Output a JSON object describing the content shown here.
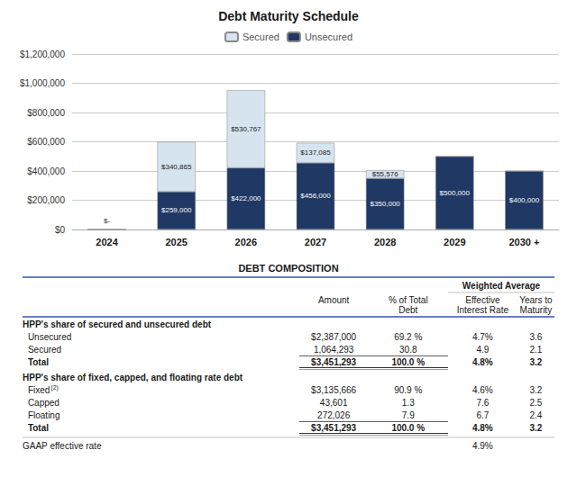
{
  "chart_data": {
    "type": "bar",
    "title": "Debt Maturity Schedule",
    "categories": [
      "2024",
      "2025",
      "2026",
      "2027",
      "2028",
      "2029",
      "2030 +"
    ],
    "series": [
      {
        "name": "Unsecured",
        "color": "#1f3864",
        "values": [
          0,
          259000,
          422000,
          456000,
          350000,
          500000,
          400000
        ],
        "value_labels": [
          "$-",
          "$259,000",
          "$422,000",
          "$456,000",
          "$350,000",
          "$500,000",
          "$400,000"
        ]
      },
      {
        "name": "Secured",
        "color": "#d6e4f0",
        "values": [
          0,
          340865,
          530767,
          137085,
          55576,
          0,
          0
        ],
        "value_labels": [
          null,
          "$340,865",
          "$530,767",
          "$137,085",
          "$55,576",
          null,
          null
        ]
      }
    ],
    "stacked": true,
    "data_labels": true,
    "legend": "top",
    "grid": true,
    "ylim": [
      0,
      1200000
    ],
    "yticks": [
      {
        "value": 0,
        "label": "$0"
      },
      {
        "value": 200000,
        "label": "$200,000"
      },
      {
        "value": 400000,
        "label": "$400,000"
      },
      {
        "value": 600000,
        "label": "$600,000"
      },
      {
        "value": 800000,
        "label": "$800,000"
      },
      {
        "value": 1000000,
        "label": "$1,000,000"
      },
      {
        "value": 1200000,
        "label": "$1,200,000"
      }
    ],
    "table": {
      "title": "DEBT COMPOSITION",
      "group_header": "Weighted Average",
      "columns": [
        "Amount",
        "% of Total\nDebt",
        "Effective\nInterest Rate",
        "Years to\nMaturity"
      ],
      "sections": [
        {
          "title": "HPP's share of secured and unsecured debt",
          "rows": [
            {
              "label": "Unsecured",
              "cells": [
                "$2,387,000",
                "69.2 %",
                "4.7%",
                "3.6"
              ]
            },
            {
              "label": "Secured",
              "cells": [
                "1,064,293",
                "30.8",
                "4.9",
                "2.1"
              ]
            },
            {
              "label": "Total",
              "total": true,
              "cells": [
                "$3,451,293",
                "100.0 %",
                "4.8%",
                "3.2"
              ]
            }
          ]
        },
        {
          "title": "HPP's share of fixed, capped, and floating rate debt",
          "rows": [
            {
              "label": "Fixed",
              "superscript": "(2)",
              "cells": [
                "$3,135,666",
                "90.9 %",
                "4.6%",
                "3.2"
              ]
            },
            {
              "label": "Capped",
              "cells": [
                "43,601",
                "1.3",
                "7.6",
                "2.5"
              ]
            },
            {
              "label": "Floating",
              "cells": [
                "272,026",
                "7.9",
                "6.7",
                "2.4"
              ]
            },
            {
              "label": "Total",
              "total": true,
              "cells": [
                "$3,451,293",
                "100.0 %",
                "4.8%",
                "3.2"
              ]
            }
          ]
        }
      ],
      "footer": {
        "label": "GAAP effective rate",
        "value": "4.9%"
      }
    }
  }
}
